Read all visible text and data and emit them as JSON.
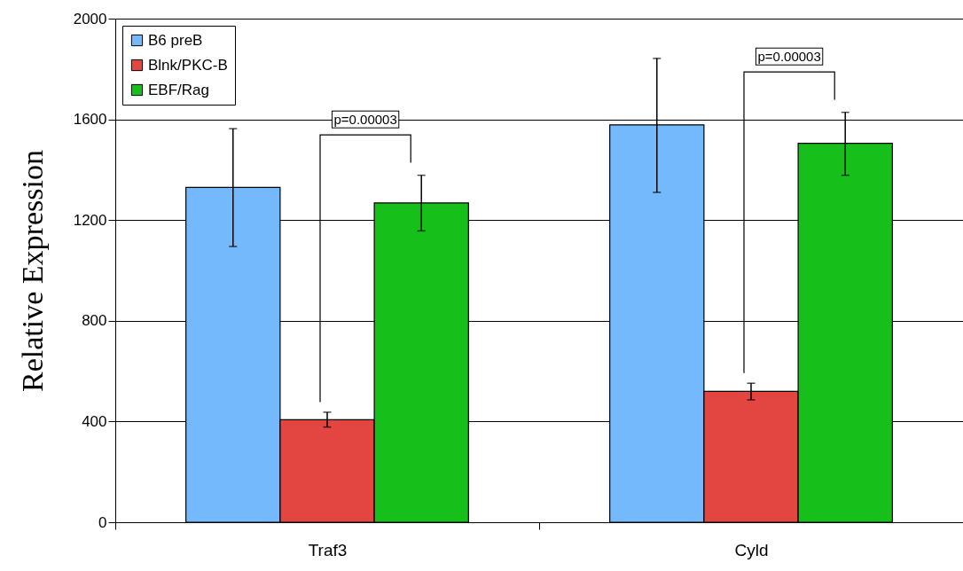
{
  "chart_data": {
    "type": "bar",
    "ylabel": "Relative Expression",
    "categories": [
      "Traf3",
      "Cyld"
    ],
    "series": [
      {
        "name": "B6 preB",
        "color": "#74b9fb",
        "values": [
          1330,
          1578
        ],
        "errors": [
          [
            1095,
            1563
          ],
          [
            1310,
            1842
          ]
        ]
      },
      {
        "name": "Blnk/PKC-B",
        "color": "#e34541",
        "values": [
          407,
          520
        ],
        "errors": [
          [
            378,
            437
          ],
          [
            486,
            552
          ]
        ]
      },
      {
        "name": "EBF/Rag",
        "color": "#17bf1b",
        "values": [
          1268,
          1505
        ],
        "errors": [
          [
            1157,
            1378
          ],
          [
            1378,
            1628
          ]
        ]
      }
    ],
    "ylim": [
      0,
      2000
    ],
    "yticks": [
      0,
      400,
      800,
      1200,
      1600,
      2000
    ],
    "grid": "y",
    "legend": "top left",
    "annotations": [
      "p=0.00003",
      "p=0.00003"
    ]
  }
}
